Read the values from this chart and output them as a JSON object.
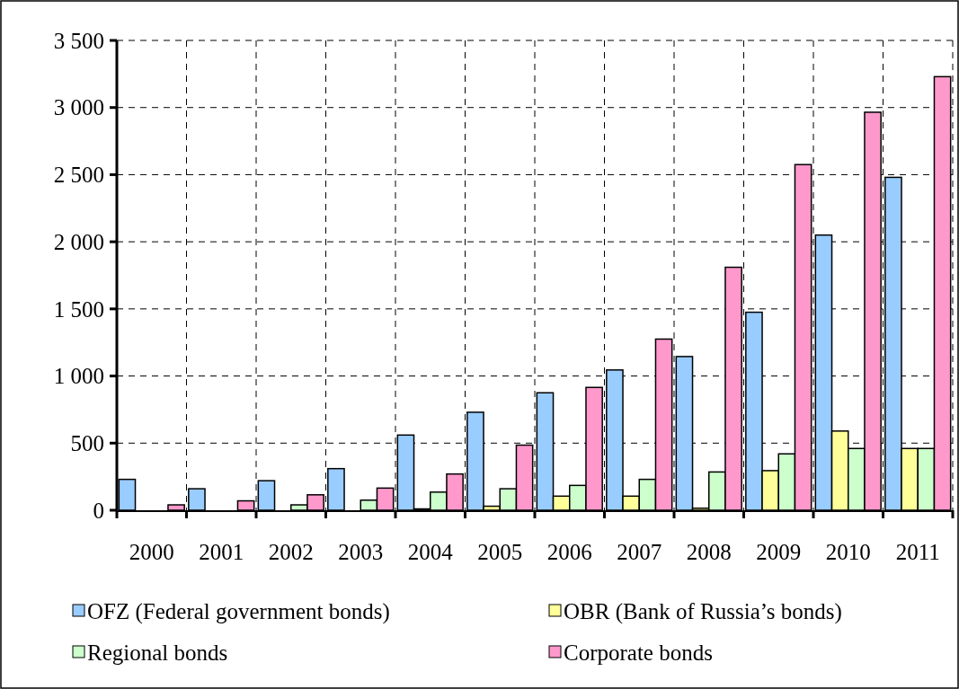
{
  "chart_data": {
    "type": "bar",
    "categories": [
      "2000",
      "2001",
      "2002",
      "2003",
      "2004",
      "2005",
      "2006",
      "2007",
      "2008",
      "2009",
      "2010",
      "2011"
    ],
    "series": [
      {
        "name": "OFZ (Federal government bonds)",
        "color": "#99ccff",
        "values": [
          230,
          160,
          220,
          310,
          560,
          730,
          875,
          1045,
          1145,
          1475,
          2050,
          2480
        ]
      },
      {
        "name": "OBR (Bank of Russia’s bonds)",
        "color": "#ffff99",
        "values": [
          0,
          0,
          0,
          0,
          10,
          30,
          105,
          105,
          15,
          295,
          590,
          460
        ]
      },
      {
        "name": "Regional bonds",
        "color": "#ccffcc",
        "values": [
          0,
          0,
          40,
          75,
          135,
          160,
          185,
          230,
          285,
          420,
          460,
          460
        ]
      },
      {
        "name": "Corporate bonds",
        "color": "#ff99cc",
        "values": [
          40,
          70,
          115,
          165,
          270,
          485,
          915,
          1275,
          1810,
          2575,
          2965,
          3230
        ]
      }
    ],
    "ylim": [
      0,
      3500
    ],
    "yticks": [
      0,
      500,
      {
        "value": 1000,
        "label": "1 000"
      },
      {
        "value": 1500,
        "label": "1 500"
      },
      {
        "value": 2000,
        "label": "2 000"
      },
      {
        "value": 2500,
        "label": "2 500"
      },
      {
        "value": 3000,
        "label": "3 000"
      },
      {
        "value": 3500,
        "label": "3 500"
      }
    ],
    "grid": true,
    "legend": "bottom"
  }
}
